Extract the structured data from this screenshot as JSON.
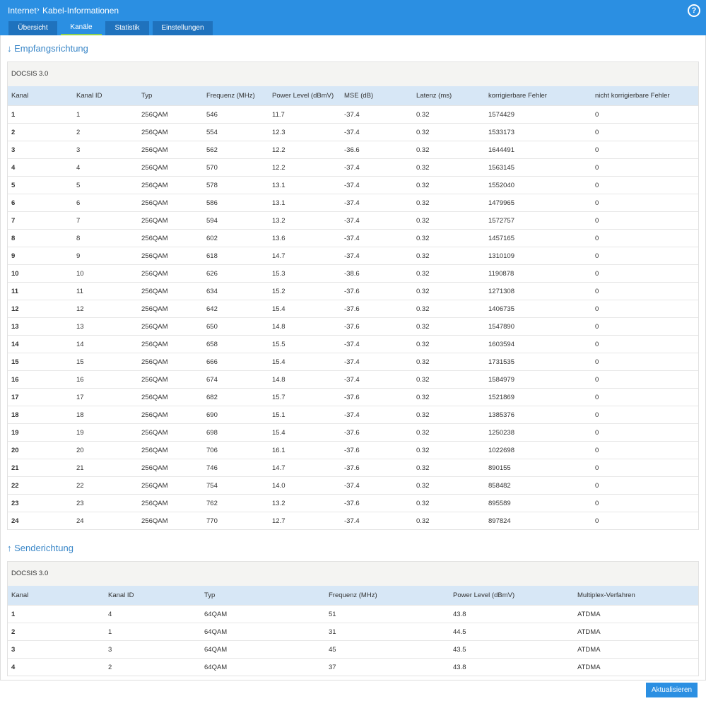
{
  "header": {
    "breadcrumb": [
      "Internet",
      "Kabel-Informationen"
    ],
    "help": "?"
  },
  "tabs": [
    "Übersicht",
    "Kanäle",
    "Statistik",
    "Einstellungen"
  ],
  "downstream": {
    "title": "↓ Empfangsrichtung",
    "caption": "DOCSIS 3.0",
    "columns": [
      "Kanal",
      "Kanal ID",
      "Typ",
      "Frequenz (MHz)",
      "Power Level (dBmV)",
      "MSE (dB)",
      "Latenz (ms)",
      "korrigierbare Fehler",
      "nicht korrigierbare Fehler"
    ],
    "rows": [
      [
        "1",
        "1",
        "256QAM",
        "546",
        "11.7",
        "-37.4",
        "0.32",
        "1574429",
        "0"
      ],
      [
        "2",
        "2",
        "256QAM",
        "554",
        "12.3",
        "-37.4",
        "0.32",
        "1533173",
        "0"
      ],
      [
        "3",
        "3",
        "256QAM",
        "562",
        "12.2",
        "-36.6",
        "0.32",
        "1644491",
        "0"
      ],
      [
        "4",
        "4",
        "256QAM",
        "570",
        "12.2",
        "-37.4",
        "0.32",
        "1563145",
        "0"
      ],
      [
        "5",
        "5",
        "256QAM",
        "578",
        "13.1",
        "-37.4",
        "0.32",
        "1552040",
        "0"
      ],
      [
        "6",
        "6",
        "256QAM",
        "586",
        "13.1",
        "-37.4",
        "0.32",
        "1479965",
        "0"
      ],
      [
        "7",
        "7",
        "256QAM",
        "594",
        "13.2",
        "-37.4",
        "0.32",
        "1572757",
        "0"
      ],
      [
        "8",
        "8",
        "256QAM",
        "602",
        "13.6",
        "-37.4",
        "0.32",
        "1457165",
        "0"
      ],
      [
        "9",
        "9",
        "256QAM",
        "618",
        "14.7",
        "-37.4",
        "0.32",
        "1310109",
        "0"
      ],
      [
        "10",
        "10",
        "256QAM",
        "626",
        "15.3",
        "-38.6",
        "0.32",
        "1190878",
        "0"
      ],
      [
        "11",
        "11",
        "256QAM",
        "634",
        "15.2",
        "-37.6",
        "0.32",
        "1271308",
        "0"
      ],
      [
        "12",
        "12",
        "256QAM",
        "642",
        "15.4",
        "-37.6",
        "0.32",
        "1406735",
        "0"
      ],
      [
        "13",
        "13",
        "256QAM",
        "650",
        "14.8",
        "-37.6",
        "0.32",
        "1547890",
        "0"
      ],
      [
        "14",
        "14",
        "256QAM",
        "658",
        "15.5",
        "-37.4",
        "0.32",
        "1603594",
        "0"
      ],
      [
        "15",
        "15",
        "256QAM",
        "666",
        "15.4",
        "-37.4",
        "0.32",
        "1731535",
        "0"
      ],
      [
        "16",
        "16",
        "256QAM",
        "674",
        "14.8",
        "-37.4",
        "0.32",
        "1584979",
        "0"
      ],
      [
        "17",
        "17",
        "256QAM",
        "682",
        "15.7",
        "-37.6",
        "0.32",
        "1521869",
        "0"
      ],
      [
        "18",
        "18",
        "256QAM",
        "690",
        "15.1",
        "-37.4",
        "0.32",
        "1385376",
        "0"
      ],
      [
        "19",
        "19",
        "256QAM",
        "698",
        "15.4",
        "-37.6",
        "0.32",
        "1250238",
        "0"
      ],
      [
        "20",
        "20",
        "256QAM",
        "706",
        "16.1",
        "-37.6",
        "0.32",
        "1022698",
        "0"
      ],
      [
        "21",
        "21",
        "256QAM",
        "746",
        "14.7",
        "-37.6",
        "0.32",
        "890155",
        "0"
      ],
      [
        "22",
        "22",
        "256QAM",
        "754",
        "14.0",
        "-37.4",
        "0.32",
        "858482",
        "0"
      ],
      [
        "23",
        "23",
        "256QAM",
        "762",
        "13.2",
        "-37.6",
        "0.32",
        "895589",
        "0"
      ],
      [
        "24",
        "24",
        "256QAM",
        "770",
        "12.7",
        "-37.4",
        "0.32",
        "897824",
        "0"
      ]
    ]
  },
  "upstream": {
    "title": "↑ Senderichtung",
    "caption": "DOCSIS 3.0",
    "columns": [
      "Kanal",
      "Kanal ID",
      "Typ",
      "Frequenz (MHz)",
      "Power Level (dBmV)",
      "Multiplex-Verfahren"
    ],
    "rows": [
      [
        "1",
        "4",
        "64QAM",
        "51",
        "43.8",
        "ATDMA"
      ],
      [
        "2",
        "1",
        "64QAM",
        "31",
        "44.5",
        "ATDMA"
      ],
      [
        "3",
        "3",
        "64QAM",
        "45",
        "43.5",
        "ATDMA"
      ],
      [
        "4",
        "2",
        "64QAM",
        "37",
        "43.8",
        "ATDMA"
      ]
    ]
  },
  "button": "Aktualisieren"
}
